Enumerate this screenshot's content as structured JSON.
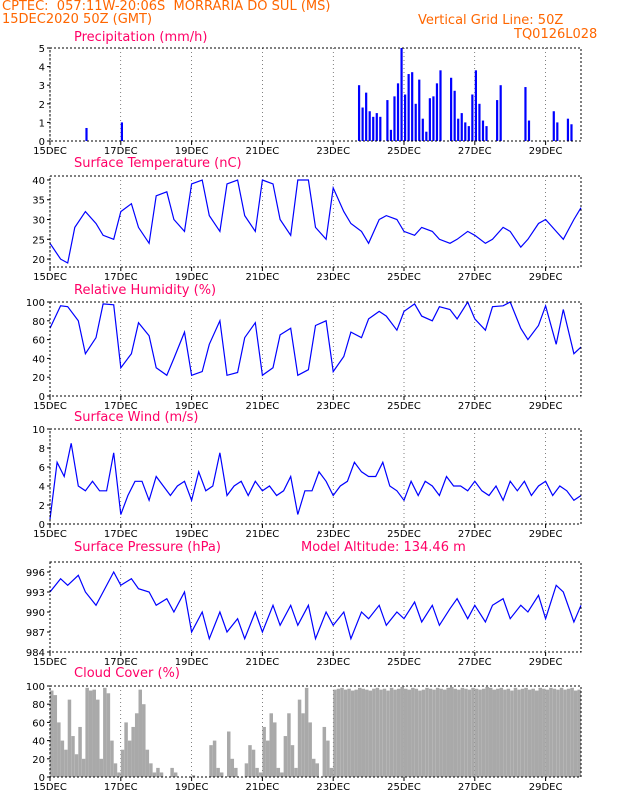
{
  "header": {
    "line1": "CPTEC:  057:11W-20:06S  MORRARIA DO SUL (MS)",
    "line2": "15DEC2020 50Z (GMT)",
    "grid_line": "Vertical Grid Line: 50Z",
    "code": "TQ0126L028",
    "text_color": "#ff6600"
  },
  "colors": {
    "title": "#ff0066",
    "line": "#0000ff",
    "cloud": "#a9a9a9",
    "frame": "#000000"
  },
  "chart_data": [
    {
      "type": "bar",
      "title": "Precipitation (mm/h)",
      "ylim": [
        0,
        5
      ],
      "y_ticks": [
        "0",
        "1",
        "2",
        "3",
        "4",
        "5"
      ],
      "x_tick_labels": [
        "15DEC",
        "17DEC",
        "19DEC",
        "21DEC",
        "23DEC",
        "25DEC",
        "27DEC",
        "29DEC"
      ],
      "x_range_days": [
        15,
        30
      ],
      "x": [
        16.0,
        17.0,
        23.7,
        23.8,
        23.9,
        24.0,
        24.1,
        24.2,
        24.3,
        24.5,
        24.6,
        24.7,
        24.8,
        24.9,
        25.0,
        25.1,
        25.2,
        25.3,
        25.4,
        25.5,
        25.6,
        25.7,
        25.8,
        25.9,
        26.0,
        26.3,
        26.4,
        26.5,
        26.6,
        26.7,
        26.8,
        26.9,
        27.0,
        27.1,
        27.2,
        27.3,
        27.6,
        27.7,
        28.4,
        28.5,
        29.2,
        29.3,
        29.6,
        29.7
      ],
      "values": [
        0.7,
        1.0,
        3.0,
        1.8,
        2.6,
        1.6,
        1.3,
        1.5,
        1.3,
        2.2,
        0.6,
        2.4,
        3.1,
        5.0,
        2.5,
        3.6,
        3.7,
        2.0,
        3.3,
        1.2,
        0.5,
        2.3,
        2.4,
        3.1,
        3.8,
        3.4,
        2.7,
        1.2,
        1.5,
        1.0,
        0.8,
        2.5,
        3.8,
        2.0,
        1.1,
        0.8,
        2.2,
        3.0,
        2.9,
        1.1,
        1.6,
        1.0,
        1.2,
        0.9
      ]
    },
    {
      "type": "line",
      "title": "Surface Temperature (nC)",
      "ylim": [
        18,
        41
      ],
      "y_ticks": [
        "20",
        "25",
        "30",
        "35",
        "40"
      ],
      "x_tick_labels": [
        "15DEC",
        "17DEC",
        "19DEC",
        "21DEC",
        "23DEC",
        "25DEC",
        "27DEC",
        "29DEC"
      ],
      "x_range_days": [
        15,
        30
      ],
      "x": [
        15.0,
        15.3,
        15.5,
        15.7,
        16.0,
        16.3,
        16.5,
        16.8,
        17.0,
        17.3,
        17.5,
        17.8,
        18.0,
        18.3,
        18.5,
        18.8,
        19.0,
        19.3,
        19.5,
        19.8,
        20.0,
        20.3,
        20.5,
        20.8,
        21.0,
        21.3,
        21.5,
        21.8,
        22.0,
        22.3,
        22.5,
        22.8,
        23.0,
        23.3,
        23.5,
        23.8,
        24.0,
        24.3,
        24.5,
        24.8,
        25.0,
        25.3,
        25.5,
        25.8,
        26.0,
        26.3,
        26.5,
        26.8,
        27.0,
        27.3,
        27.5,
        27.8,
        28.0,
        28.3,
        28.5,
        28.8,
        29.0,
        29.3,
        29.5,
        29.8,
        30.0
      ],
      "values": [
        24,
        20,
        19,
        28,
        32,
        29,
        26,
        25,
        32,
        34,
        28,
        24,
        36,
        37,
        30,
        27,
        39,
        40,
        31,
        27,
        39,
        40,
        31,
        27,
        40,
        39,
        30,
        26,
        40,
        40,
        28,
        25,
        38,
        32,
        29,
        27,
        24,
        30,
        31,
        30,
        27,
        26,
        28,
        27,
        25,
        24,
        25,
        27,
        26,
        24,
        25,
        28,
        27,
        23,
        25,
        29,
        30,
        27,
        25,
        30,
        33
      ]
    },
    {
      "type": "line",
      "title": "Relative Humidity (%)",
      "ylim": [
        0,
        100
      ],
      "y_ticks": [
        "0",
        "20",
        "40",
        "60",
        "80",
        "100"
      ],
      "x_tick_labels": [
        "15DEC",
        "17DEC",
        "19DEC",
        "21DEC",
        "23DEC",
        "25DEC",
        "27DEC",
        "29DEC"
      ],
      "x_range_days": [
        15,
        30
      ],
      "x": [
        15.0,
        15.3,
        15.5,
        15.8,
        16.0,
        16.3,
        16.5,
        16.8,
        17.0,
        17.3,
        17.5,
        17.8,
        18.0,
        18.3,
        18.5,
        18.8,
        19.0,
        19.3,
        19.5,
        19.8,
        20.0,
        20.3,
        20.5,
        20.8,
        21.0,
        21.3,
        21.5,
        21.8,
        22.0,
        22.3,
        22.5,
        22.8,
        23.0,
        23.3,
        23.5,
        23.8,
        24.0,
        24.3,
        24.5,
        24.8,
        25.0,
        25.3,
        25.5,
        25.8,
        26.0,
        26.3,
        26.5,
        26.8,
        27.0,
        27.3,
        27.5,
        27.8,
        28.0,
        28.3,
        28.5,
        28.8,
        29.0,
        29.3,
        29.5,
        29.8,
        30.0
      ],
      "values": [
        72,
        96,
        95,
        80,
        45,
        62,
        98,
        97,
        30,
        45,
        78,
        64,
        30,
        22,
        40,
        68,
        22,
        26,
        55,
        80,
        22,
        25,
        62,
        78,
        22,
        30,
        65,
        72,
        22,
        28,
        75,
        80,
        26,
        42,
        68,
        62,
        82,
        90,
        85,
        70,
        90,
        98,
        85,
        80,
        95,
        92,
        82,
        100,
        82,
        70,
        95,
        96,
        100,
        72,
        60,
        75,
        96,
        55,
        92,
        45,
        52
      ]
    },
    {
      "type": "line",
      "title": "Surface Wind (m/s)",
      "ylim": [
        0,
        10
      ],
      "y_ticks": [
        "0",
        "2",
        "4",
        "6",
        "8",
        "10"
      ],
      "x_tick_labels": [
        "15DEC",
        "17DEC",
        "19DEC",
        "21DEC",
        "23DEC",
        "25DEC",
        "27DEC",
        "29DEC"
      ],
      "x_range_days": [
        15,
        30
      ],
      "x": [
        15.0,
        15.2,
        15.4,
        15.6,
        15.8,
        16.0,
        16.2,
        16.4,
        16.6,
        16.8,
        17.0,
        17.2,
        17.4,
        17.6,
        17.8,
        18.0,
        18.2,
        18.4,
        18.6,
        18.8,
        19.0,
        19.2,
        19.4,
        19.6,
        19.8,
        20.0,
        20.2,
        20.4,
        20.6,
        20.8,
        21.0,
        21.2,
        21.4,
        21.6,
        21.8,
        22.0,
        22.2,
        22.4,
        22.6,
        22.8,
        23.0,
        23.2,
        23.4,
        23.6,
        23.8,
        24.0,
        24.2,
        24.4,
        24.6,
        24.8,
        25.0,
        25.2,
        25.4,
        25.6,
        25.8,
        26.0,
        26.2,
        26.4,
        26.6,
        26.8,
        27.0,
        27.2,
        27.4,
        27.6,
        27.8,
        28.0,
        28.2,
        28.4,
        28.6,
        28.8,
        29.0,
        29.2,
        29.4,
        29.6,
        29.8,
        30.0
      ],
      "values": [
        0.5,
        6.5,
        5.0,
        8.5,
        4.0,
        3.5,
        4.5,
        3.5,
        3.5,
        7.5,
        1.0,
        3.0,
        4.5,
        4.5,
        2.5,
        5.0,
        4.0,
        3.0,
        4.0,
        4.5,
        2.5,
        5.5,
        3.5,
        4.0,
        7.5,
        3.0,
        4.0,
        4.5,
        3.0,
        4.5,
        3.5,
        4.0,
        3.0,
        3.5,
        5.0,
        1.0,
        3.5,
        3.5,
        5.5,
        4.5,
        3.0,
        4.0,
        4.5,
        6.5,
        5.5,
        5.0,
        5.0,
        6.5,
        4.0,
        3.5,
        2.5,
        4.5,
        3.0,
        4.5,
        4.0,
        3.0,
        5.0,
        4.0,
        4.0,
        3.5,
        4.5,
        3.5,
        3.0,
        4.0,
        2.5,
        4.5,
        3.5,
        4.5,
        3.0,
        4.0,
        4.5,
        3.0,
        4.0,
        3.5,
        2.5,
        3.0
      ]
    },
    {
      "type": "line",
      "title": "Surface Pressure (hPa)",
      "annotation": "Model Altitude: 134.46 m",
      "ylim": [
        984,
        997.5
      ],
      "y_ticks": [
        "984",
        "987",
        "990",
        "993",
        "996"
      ],
      "x_tick_labels": [
        "15DEC",
        "17DEC",
        "19DEC",
        "21DEC",
        "23DEC",
        "25DEC",
        "27DEC",
        "29DEC"
      ],
      "x_range_days": [
        15,
        30
      ],
      "x": [
        15.0,
        15.3,
        15.5,
        15.8,
        16.0,
        16.3,
        16.5,
        16.8,
        17.0,
        17.3,
        17.5,
        17.8,
        18.0,
        18.3,
        18.5,
        18.8,
        19.0,
        19.3,
        19.5,
        19.8,
        20.0,
        20.3,
        20.5,
        20.8,
        21.0,
        21.3,
        21.5,
        21.8,
        22.0,
        22.3,
        22.5,
        22.8,
        23.0,
        23.3,
        23.5,
        23.8,
        24.0,
        24.3,
        24.5,
        24.8,
        25.0,
        25.3,
        25.5,
        25.8,
        26.0,
        26.3,
        26.5,
        26.8,
        27.0,
        27.3,
        27.5,
        27.8,
        28.0,
        28.3,
        28.5,
        28.8,
        29.0,
        29.3,
        29.5,
        29.8,
        30.0
      ],
      "values": [
        993,
        995,
        994,
        995.5,
        993,
        991,
        993,
        996,
        994,
        995,
        993.5,
        993,
        991,
        992,
        990,
        993,
        987,
        990,
        986,
        990,
        987,
        989,
        986,
        990,
        987,
        991,
        988,
        991,
        988,
        991,
        986,
        990,
        988,
        990,
        986,
        990,
        989,
        991,
        988,
        990,
        989,
        991.5,
        988.5,
        991,
        988,
        990.5,
        992,
        989,
        991,
        988.5,
        991,
        992,
        989,
        991,
        990,
        992.5,
        989,
        994,
        993,
        988.5,
        991
      ]
    },
    {
      "type": "bar",
      "title": "Cloud Cover (%)",
      "ylim": [
        0,
        100
      ],
      "y_ticks": [
        "0",
        "20",
        "40",
        "60",
        "80",
        "100"
      ],
      "x_tick_labels": [
        "15DEC",
        "17DEC",
        "19DEC",
        "21DEC",
        "23DEC",
        "25DEC",
        "27DEC",
        "29DEC"
      ],
      "x_range_days": [
        15,
        30
      ],
      "x": [
        15.0,
        15.1,
        15.2,
        15.3,
        15.4,
        15.5,
        15.6,
        15.7,
        15.8,
        15.9,
        16.0,
        16.1,
        16.2,
        16.3,
        16.4,
        16.5,
        16.6,
        16.7,
        16.8,
        16.9,
        17.0,
        17.1,
        17.2,
        17.3,
        17.4,
        17.5,
        17.6,
        17.7,
        17.8,
        17.9,
        18.0,
        18.1,
        18.2,
        18.3,
        18.4,
        18.5,
        18.6,
        18.7,
        18.8,
        18.9,
        19.0,
        19.1,
        19.2,
        19.3,
        19.4,
        19.5,
        19.6,
        19.7,
        19.8,
        19.9,
        20.0,
        20.1,
        20.2,
        20.3,
        20.4,
        20.5,
        20.6,
        20.7,
        20.8,
        20.9,
        21.0,
        21.1,
        21.2,
        21.3,
        21.4,
        21.5,
        21.6,
        21.7,
        21.8,
        21.9,
        22.0,
        22.1,
        22.2,
        22.3,
        22.4,
        22.5,
        22.6,
        22.7,
        22.8,
        22.9,
        23.0,
        23.1,
        23.2,
        23.3,
        23.4,
        23.5,
        23.6,
        23.7,
        23.8,
        23.9,
        24.0,
        24.1,
        24.2,
        24.3,
        24.4,
        24.5,
        24.6,
        24.7,
        24.8,
        24.9,
        25.0,
        25.1,
        25.2,
        25.3,
        25.4,
        25.5,
        25.6,
        25.7,
        25.8,
        25.9,
        26.0,
        26.1,
        26.2,
        26.3,
        26.4,
        26.5,
        26.6,
        26.7,
        26.8,
        26.9,
        27.0,
        27.1,
        27.2,
        27.3,
        27.4,
        27.5,
        27.6,
        27.7,
        27.8,
        27.9,
        28.0,
        28.1,
        28.2,
        28.3,
        28.4,
        28.5,
        28.6,
        28.7,
        28.8,
        28.9,
        29.0,
        29.1,
        29.2,
        29.3,
        29.4,
        29.5,
        29.6,
        29.7,
        29.8,
        29.9
      ],
      "values": [
        95,
        90,
        60,
        40,
        30,
        85,
        45,
        25,
        55,
        20,
        98,
        95,
        96,
        85,
        20,
        98,
        92,
        40,
        15,
        5,
        30,
        60,
        40,
        55,
        70,
        96,
        80,
        30,
        15,
        5,
        10,
        5,
        0,
        0,
        10,
        5,
        0,
        0,
        0,
        0,
        2,
        0,
        0,
        0,
        0,
        35,
        40,
        10,
        5,
        0,
        50,
        20,
        10,
        0,
        0,
        15,
        35,
        30,
        10,
        5,
        55,
        40,
        70,
        60,
        10,
        5,
        45,
        70,
        35,
        10,
        85,
        70,
        98,
        60,
        20,
        15,
        0,
        55,
        40,
        10,
        96,
        97,
        98,
        96,
        97,
        95,
        96,
        98,
        97,
        96,
        95,
        97,
        98,
        96,
        97,
        95,
        98,
        96,
        97,
        99,
        97,
        96,
        98,
        97,
        95,
        96,
        98,
        97,
        96,
        98,
        97,
        96,
        98,
        99,
        97,
        96,
        98,
        97,
        96,
        98,
        97,
        96,
        97,
        99,
        98,
        96,
        97,
        98,
        96,
        97,
        95,
        98,
        96,
        97,
        98,
        96,
        97,
        95,
        98,
        97,
        96,
        98,
        97,
        96,
        98,
        96,
        97,
        98,
        95,
        96
      ]
    }
  ]
}
